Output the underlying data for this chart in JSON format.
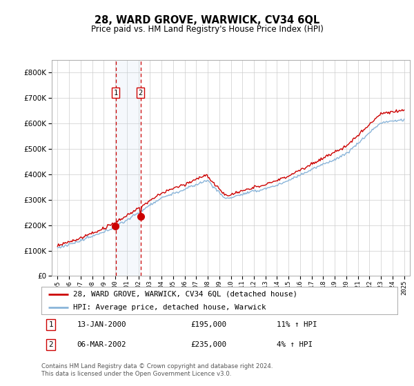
{
  "title": "28, WARD GROVE, WARWICK, CV34 6QL",
  "subtitle": "Price paid vs. HM Land Registry's House Price Index (HPI)",
  "legend_line1": "28, WARD GROVE, WARWICK, CV34 6QL (detached house)",
  "legend_line2": "HPI: Average price, detached house, Warwick",
  "sale1_date": "13-JAN-2000",
  "sale1_price": "£195,000",
  "sale1_hpi": "11% ↑ HPI",
  "sale2_date": "06-MAR-2002",
  "sale2_price": "£235,000",
  "sale2_hpi": "4% ↑ HPI",
  "footnote1": "Contains HM Land Registry data © Crown copyright and database right 2024.",
  "footnote2": "This data is licensed under the Open Government Licence v3.0.",
  "red_color": "#cc0000",
  "blue_color": "#89b4d9",
  "shade_color": "#ddeeff",
  "marker_box_color": "#cc0000",
  "background_color": "#ffffff",
  "grid_color": "#cccccc",
  "ylim_min": 0,
  "ylim_max": 850000,
  "sale1_year": 2000.04,
  "sale2_year": 2002.18,
  "sale1_value": 195000,
  "sale2_value": 235000,
  "xmin": 1994.5,
  "xmax": 2025.5
}
